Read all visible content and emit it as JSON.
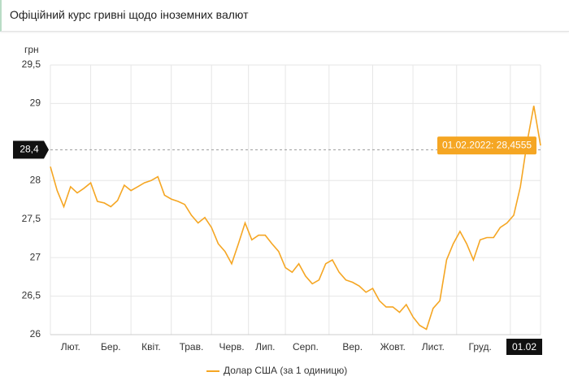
{
  "chart_data": {
    "type": "line",
    "title": "Офіційний курс гривні щодо іноземних валют",
    "y_label": "грн",
    "categories": [
      null,
      null,
      null,
      "Лют.",
      null,
      null,
      null,
      null,
      null,
      "Бер.",
      null,
      null,
      null,
      null,
      null,
      "Квіт.",
      null,
      null,
      null,
      null,
      null,
      "Трав.",
      null,
      null,
      null,
      null,
      null,
      "Черв.",
      null,
      null,
      null,
      null,
      "Лип.",
      null,
      null,
      null,
      null,
      null,
      "Серп.",
      null,
      null,
      null,
      null,
      null,
      null,
      "Вер.",
      null,
      null,
      null,
      null,
      null,
      "Жовт.",
      null,
      null,
      null,
      null,
      null,
      "Лист.",
      null,
      null,
      null,
      null,
      null,
      null,
      "Груд.",
      null,
      null,
      null,
      null,
      null,
      null,
      null,
      null,
      "01.02"
    ],
    "series": [
      {
        "name": "Долар США (за 1 одиницю)",
        "color": "#f5a623",
        "values": [
          28.18,
          27.87,
          27.66,
          27.92,
          27.84,
          27.9,
          27.97,
          27.73,
          27.71,
          27.66,
          27.74,
          27.94,
          27.87,
          27.92,
          27.97,
          28.0,
          28.05,
          27.81,
          27.76,
          27.73,
          27.69,
          27.55,
          27.45,
          27.52,
          27.39,
          27.18,
          27.08,
          26.92,
          27.18,
          27.45,
          27.23,
          27.29,
          27.29,
          27.18,
          27.08,
          26.87,
          26.81,
          26.92,
          26.76,
          26.66,
          26.71,
          26.92,
          26.97,
          26.81,
          26.71,
          26.68,
          26.63,
          26.55,
          26.6,
          26.44,
          26.36,
          26.36,
          26.29,
          26.39,
          26.23,
          26.12,
          26.07,
          26.34,
          26.44,
          26.97,
          27.18,
          27.34,
          27.18,
          26.97,
          27.23,
          27.26,
          27.26,
          27.39,
          27.45,
          27.55,
          27.92,
          28.5,
          28.97,
          28.4555
        ]
      }
    ],
    "ylim": [
      26,
      29.5
    ],
    "yticks": [
      26,
      {
        "value": 26.5,
        "label": "26,5"
      },
      27,
      {
        "value": 27.5,
        "label": "27,5"
      },
      28,
      29,
      {
        "value": 29.5,
        "label": "29,5"
      }
    ],
    "grid": true,
    "crosshair": {
      "value": 28.4,
      "label": "28,4"
    },
    "tooltip": "01.02.2022: 28,4555"
  }
}
